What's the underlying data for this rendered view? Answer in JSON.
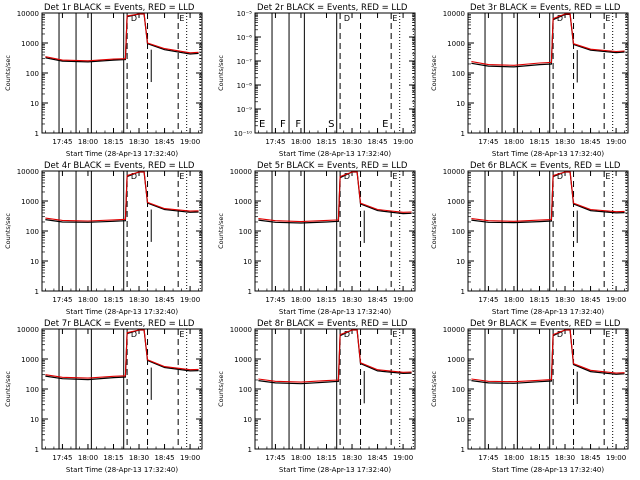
{
  "chart_data": [
    {
      "type": "line",
      "title": "Det 1r BLACK = Events, RED = LLD",
      "ylabel": "Counts/sec",
      "xlabel": "Start Time (28-Apr-13 17:32:40)",
      "y_scale": "log",
      "ylim": [
        1,
        10000
      ],
      "y_ticks": [
        "1",
        "10",
        "100",
        "1000",
        "10000"
      ],
      "x_ticks": [
        "17:45",
        "18:00",
        "18:15",
        "18:30",
        "18:45",
        "19:00"
      ],
      "has_data": true,
      "letters": [],
      "markers": [
        "D",
        "E"
      ],
      "series": [
        {
          "color": "#000000",
          "x": [
            "17:35",
            "17:45",
            "18:00",
            "18:15",
            "18:22",
            "18:23",
            "18:30",
            "18:33",
            "18:35",
            "18:45",
            "19:00",
            "19:05"
          ],
          "y": [
            320,
            250,
            235,
            270,
            280,
            7500,
            11000,
            11000,
            950,
            600,
            430,
            450
          ]
        },
        {
          "color": "#e00000",
          "x": [
            "17:35",
            "17:45",
            "18:00",
            "18:15",
            "18:22",
            "18:23",
            "18:30",
            "18:33",
            "18:35",
            "18:45",
            "19:00",
            "19:05"
          ],
          "y": [
            350,
            270,
            255,
            290,
            300,
            8000,
            12000,
            12000,
            1000,
            650,
            470,
            490
          ]
        }
      ]
    },
    {
      "type": "line",
      "title": "Det 2r BLACK = Events, RED = LLD",
      "ylabel": "Counts/sec",
      "xlabel": "Start Time (28-Apr-13 17:32:40)",
      "y_scale": "log",
      "ylim": [
        1e-10,
        1e-05
      ],
      "y_ticks": [
        "10⁻¹⁰",
        "10⁻⁹",
        "10⁻⁸",
        "10⁻⁷",
        "10⁻⁶",
        "10⁻⁵"
      ],
      "x_ticks": [
        "17:45",
        "18:00",
        "18:15",
        "18:30",
        "18:45",
        "19:00"
      ],
      "has_data": false,
      "letters": [
        "E",
        "F",
        "F",
        "S",
        "E"
      ],
      "markers": [
        "D",
        "E"
      ],
      "series": []
    },
    {
      "type": "line",
      "title": "Det 3r BLACK = Events, RED = LLD",
      "ylabel": "Counts/sec",
      "xlabel": "Start Time (28-Apr-13 17:32:40)",
      "y_scale": "log",
      "ylim": [
        1,
        10000
      ],
      "y_ticks": [
        "1",
        "10",
        "100",
        "1000",
        "10000"
      ],
      "x_ticks": [
        "17:45",
        "18:00",
        "18:15",
        "18:30",
        "18:45",
        "19:00"
      ],
      "has_data": true,
      "letters": [],
      "markers": [
        "D",
        "E"
      ],
      "series": [
        {
          "color": "#000000",
          "x": [
            "17:35",
            "17:45",
            "18:00",
            "18:15",
            "18:22",
            "18:23",
            "18:30",
            "18:33",
            "18:35",
            "18:45",
            "19:00",
            "19:05"
          ],
          "y": [
            210,
            170,
            160,
            190,
            200,
            6000,
            9000,
            9000,
            900,
            580,
            480,
            500
          ]
        },
        {
          "color": "#e00000",
          "x": [
            "17:35",
            "17:45",
            "18:00",
            "18:15",
            "18:22",
            "18:23",
            "18:30",
            "18:33",
            "18:35",
            "18:45",
            "19:00",
            "19:05"
          ],
          "y": [
            240,
            190,
            180,
            215,
            225,
            6500,
            10000,
            10000,
            950,
            620,
            520,
            540
          ]
        }
      ]
    },
    {
      "type": "line",
      "title": "Det 4r BLACK = Events, RED = LLD",
      "ylabel": "Counts/sec",
      "xlabel": "Start Time (28-Apr-13 17:32:40)",
      "y_scale": "log",
      "ylim": [
        1,
        10000
      ],
      "y_ticks": [
        "1",
        "10",
        "100",
        "1000",
        "10000"
      ],
      "x_ticks": [
        "17:45",
        "18:00",
        "18:15",
        "18:30",
        "18:45",
        "19:00"
      ],
      "has_data": true,
      "letters": [],
      "markers": [
        "D",
        "E"
      ],
      "series": [
        {
          "color": "#000000",
          "x": [
            "17:35",
            "17:45",
            "18:00",
            "18:15",
            "18:22",
            "18:23",
            "18:30",
            "18:33",
            "18:35",
            "18:45",
            "19:00",
            "19:05"
          ],
          "y": [
            240,
            200,
            195,
            210,
            220,
            6500,
            10000,
            10000,
            850,
            520,
            420,
            430
          ]
        },
        {
          "color": "#e00000",
          "x": [
            "17:35",
            "17:45",
            "18:00",
            "18:15",
            "18:22",
            "18:23",
            "18:30",
            "18:33",
            "18:35",
            "18:45",
            "19:00",
            "19:05"
          ],
          "y": [
            270,
            225,
            215,
            235,
            245,
            7000,
            11000,
            11000,
            900,
            560,
            460,
            470
          ]
        }
      ]
    },
    {
      "type": "line",
      "title": "Det 5r BLACK = Events, RED = LLD",
      "ylabel": "Counts/sec",
      "xlabel": "Start Time (28-Apr-13 17:32:40)",
      "y_scale": "log",
      "ylim": [
        1,
        10000
      ],
      "y_ticks": [
        "1",
        "10",
        "100",
        "1000",
        "10000"
      ],
      "x_ticks": [
        "17:45",
        "18:00",
        "18:15",
        "18:30",
        "18:45",
        "19:00"
      ],
      "has_data": true,
      "letters": [],
      "markers": [
        "D",
        "E"
      ],
      "series": [
        {
          "color": "#000000",
          "x": [
            "17:35",
            "17:45",
            "18:00",
            "18:15",
            "18:22",
            "18:23",
            "18:30",
            "18:33",
            "18:35",
            "18:45",
            "19:00",
            "19:05"
          ],
          "y": [
            230,
            195,
            185,
            200,
            210,
            6000,
            9500,
            9500,
            800,
            480,
            380,
            390
          ]
        },
        {
          "color": "#e00000",
          "x": [
            "17:35",
            "17:45",
            "18:00",
            "18:15",
            "18:22",
            "18:23",
            "18:30",
            "18:33",
            "18:35",
            "18:45",
            "19:00",
            "19:05"
          ],
          "y": [
            260,
            220,
            205,
            225,
            235,
            6500,
            10500,
            10500,
            850,
            520,
            420,
            430
          ]
        }
      ]
    },
    {
      "type": "line",
      "title": "Det 6r BLACK = Events, RED = LLD",
      "ylabel": "Counts/sec",
      "xlabel": "Start Time (28-Apr-13 17:32:40)",
      "y_scale": "log",
      "ylim": [
        1,
        10000
      ],
      "y_ticks": [
        "1",
        "10",
        "100",
        "1000",
        "10000"
      ],
      "x_ticks": [
        "17:45",
        "18:00",
        "18:15",
        "18:30",
        "18:45",
        "19:00"
      ],
      "has_data": true,
      "letters": [],
      "markers": [
        "D",
        "E"
      ],
      "series": [
        {
          "color": "#000000",
          "x": [
            "17:35",
            "17:45",
            "18:00",
            "18:15",
            "18:22",
            "18:23",
            "18:30",
            "18:33",
            "18:35",
            "18:45",
            "19:00",
            "19:05"
          ],
          "y": [
            230,
            195,
            190,
            205,
            215,
            6500,
            10000,
            10000,
            800,
            480,
            400,
            410
          ]
        },
        {
          "color": "#e00000",
          "x": [
            "17:35",
            "17:45",
            "18:00",
            "18:15",
            "18:22",
            "18:23",
            "18:30",
            "18:33",
            "18:35",
            "18:45",
            "19:00",
            "19:05"
          ],
          "y": [
            260,
            220,
            210,
            230,
            240,
            7000,
            11000,
            11000,
            850,
            520,
            440,
            450
          ]
        }
      ]
    },
    {
      "type": "line",
      "title": "Det 7r BLACK = Events, RED = LLD",
      "ylabel": "Counts/sec",
      "xlabel": "Start Time (28-Apr-13 17:32:40)",
      "y_scale": "log",
      "ylim": [
        1,
        10000
      ],
      "y_ticks": [
        "1",
        "10",
        "100",
        "1000",
        "10000"
      ],
      "x_ticks": [
        "17:45",
        "18:00",
        "18:15",
        "18:30",
        "18:45",
        "19:00"
      ],
      "has_data": true,
      "letters": [],
      "markers": [
        "D",
        "E"
      ],
      "series": [
        {
          "color": "#000000",
          "x": [
            "17:35",
            "17:45",
            "18:00",
            "18:15",
            "18:22",
            "18:23",
            "18:30",
            "18:33",
            "18:35",
            "18:45",
            "19:00",
            "19:05"
          ],
          "y": [
            270,
            220,
            205,
            240,
            250,
            7000,
            10000,
            10000,
            900,
            520,
            400,
            410
          ]
        },
        {
          "color": "#e00000",
          "x": [
            "17:35",
            "17:45",
            "18:00",
            "18:15",
            "18:22",
            "18:23",
            "18:30",
            "18:33",
            "18:35",
            "18:45",
            "19:00",
            "19:05"
          ],
          "y": [
            300,
            245,
            230,
            265,
            275,
            7500,
            11000,
            11000,
            950,
            560,
            440,
            450
          ]
        }
      ]
    },
    {
      "type": "line",
      "title": "Det 8r BLACK = Events, RED = LLD",
      "ylabel": "Counts/sec",
      "xlabel": "Start Time (28-Apr-13 17:32:40)",
      "y_scale": "log",
      "ylim": [
        1,
        10000
      ],
      "y_ticks": [
        "1",
        "10",
        "100",
        "1000",
        "10000"
      ],
      "x_ticks": [
        "17:45",
        "18:00",
        "18:15",
        "18:30",
        "18:45",
        "19:00"
      ],
      "has_data": true,
      "letters": [],
      "markers": [
        "D",
        "E"
      ],
      "series": [
        {
          "color": "#000000",
          "x": [
            "17:35",
            "17:45",
            "18:00",
            "18:15",
            "18:22",
            "18:23",
            "18:30",
            "18:33",
            "18:35",
            "18:45",
            "19:00",
            "19:05"
          ],
          "y": [
            190,
            160,
            150,
            170,
            180,
            6000,
            9500,
            9500,
            700,
            400,
            330,
            340
          ]
        },
        {
          "color": "#e00000",
          "x": [
            "17:35",
            "17:45",
            "18:00",
            "18:15",
            "18:22",
            "18:23",
            "18:30",
            "18:33",
            "18:35",
            "18:45",
            "19:00",
            "19:05"
          ],
          "y": [
            215,
            180,
            170,
            190,
            200,
            6500,
            10500,
            10500,
            750,
            440,
            360,
            370
          ]
        }
      ]
    },
    {
      "type": "line",
      "title": "Det 9r BLACK = Events, RED = LLD",
      "ylabel": "Counts/sec",
      "xlabel": "Start Time (28-Apr-13 17:32:40)",
      "y_scale": "log",
      "ylim": [
        1,
        10000
      ],
      "y_ticks": [
        "1",
        "10",
        "100",
        "1000",
        "10000"
      ],
      "x_ticks": [
        "17:45",
        "18:00",
        "18:15",
        "18:30",
        "18:45",
        "19:00"
      ],
      "has_data": true,
      "letters": [],
      "markers": [
        "D",
        "E"
      ],
      "series": [
        {
          "color": "#000000",
          "x": [
            "17:35",
            "17:45",
            "18:00",
            "18:15",
            "18:22",
            "18:23",
            "18:30",
            "18:33",
            "18:35",
            "18:45",
            "19:00",
            "19:05"
          ],
          "y": [
            190,
            160,
            155,
            175,
            185,
            6000,
            9500,
            9500,
            650,
            380,
            310,
            320
          ]
        },
        {
          "color": "#e00000",
          "x": [
            "17:35",
            "17:45",
            "18:00",
            "18:15",
            "18:22",
            "18:23",
            "18:30",
            "18:33",
            "18:35",
            "18:45",
            "19:00",
            "19:05"
          ],
          "y": [
            215,
            180,
            175,
            195,
            205,
            6500,
            10500,
            10500,
            700,
            420,
            340,
            350
          ]
        }
      ]
    }
  ]
}
